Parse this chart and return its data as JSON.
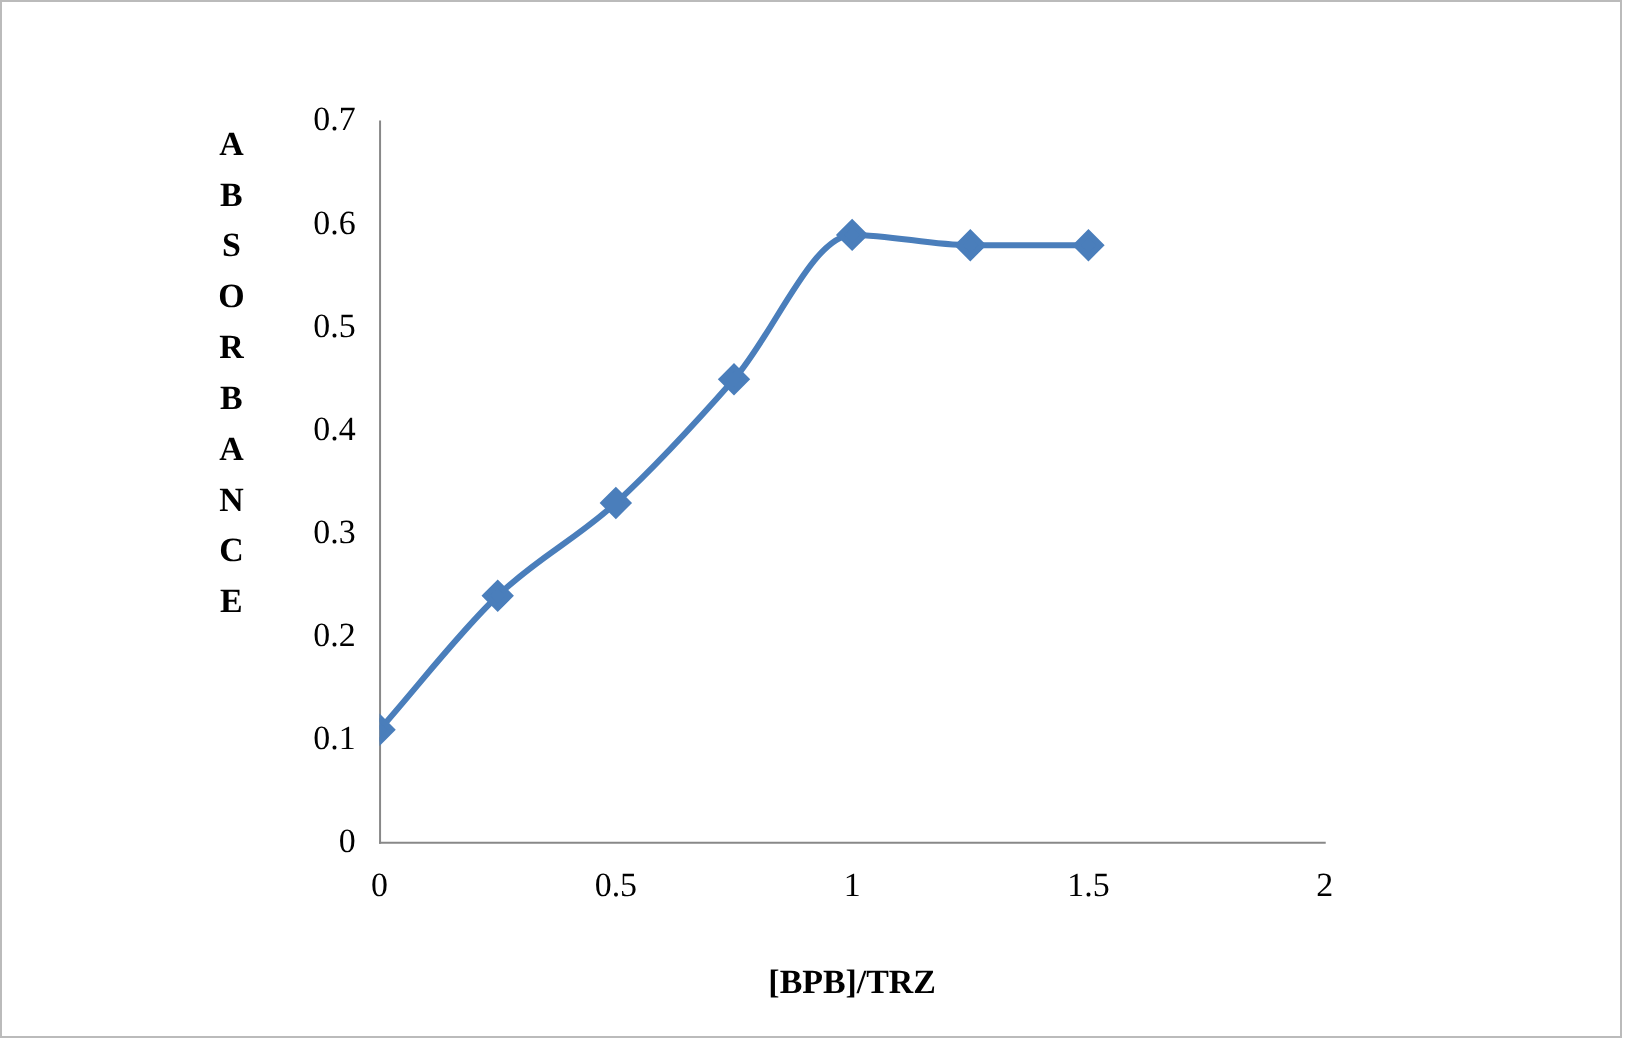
{
  "chart_data": {
    "type": "line",
    "xlabel": "[BPB]/TRZ",
    "ylabel": "ABSORBANCE",
    "x": [
      0,
      0.25,
      0.5,
      0.75,
      1,
      1.25,
      1.5
    ],
    "series": [
      {
        "color": "#4a7ebb",
        "values": [
          0.11,
          0.24,
          0.33,
          0.45,
          0.59,
          0.58,
          0.58
        ]
      }
    ],
    "xlim": [
      0,
      2
    ],
    "xticks": [
      0,
      0.5,
      1,
      1.5,
      2
    ],
    "ylim": [
      0,
      0.7
    ],
    "yticks": [
      0,
      0.1,
      0.2,
      0.3,
      0.4,
      0.5,
      0.6,
      0.7
    ],
    "grid": false,
    "legend": false,
    "marker": "diamond",
    "line_style": "solid"
  }
}
